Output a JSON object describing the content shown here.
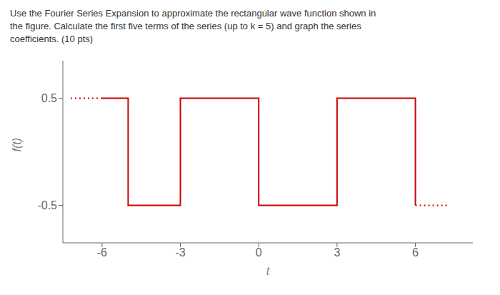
{
  "chart_data": {
    "type": "line",
    "title": [
      "Use the Fourier Series Expansion to approximate the rectangular wave function shown in",
      "the figure. Calculate the first five terms of the series (up to k = 5) and graph the series",
      "coefficients. (10 pts)"
    ],
    "xlabel": "t",
    "ylabel": "f(t)",
    "xlim": [
      -7.5,
      8.2
    ],
    "ylim": [
      -0.85,
      0.85
    ],
    "xticks": [
      -6,
      -3,
      0,
      3,
      6
    ],
    "yticks": [
      -0.5,
      0.5
    ],
    "grid": false,
    "series": [
      {
        "x": [
          -6.0,
          -5.0,
          -5.0,
          -3.0,
          -3.0,
          0.0,
          0.0,
          3.0,
          3.0,
          6.0,
          6.0
        ],
        "values": [
          0.5,
          0.5,
          -0.5,
          -0.5,
          0.5,
          0.5,
          -0.5,
          -0.5,
          0.5,
          0.5,
          -0.5
        ],
        "color": "#cc0000",
        "line_style": "solid"
      },
      {
        "x": [
          -7.2,
          -6.0
        ],
        "values": [
          0.5,
          0.5
        ],
        "color": "#cc0000",
        "line_style": "dotted"
      },
      {
        "x": [
          6.0,
          7.3
        ],
        "values": [
          -0.5,
          -0.5
        ],
        "color": "#cc0000",
        "line_style": "dotted"
      }
    ]
  }
}
